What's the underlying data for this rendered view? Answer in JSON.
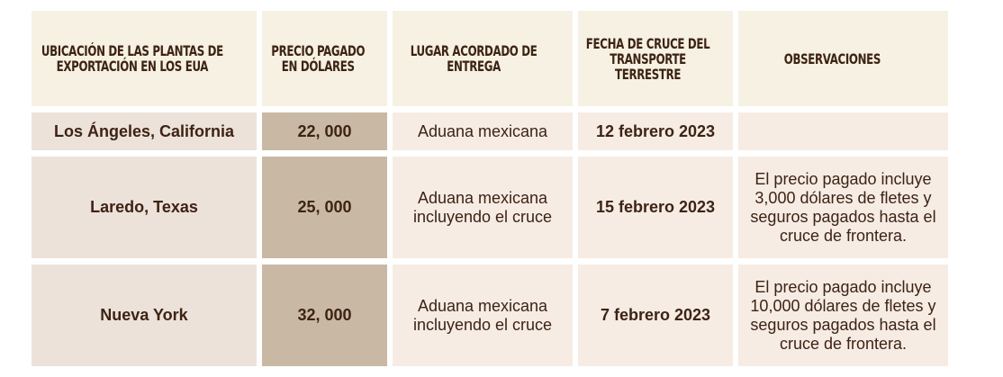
{
  "headers": [
    "UBICACIÓN DE LAS PLANTAS DE EXPORTACIÓN EN LOS EUA",
    "PRECIO PAGADO EN DÓLARES",
    "LUGAR ACORDADO DE ENTREGA",
    "FECHA DE CRUCE DEL TRANSPORTE TERRESTRE",
    "OBSERVACIONES"
  ],
  "rows": [
    {
      "ubicacion": "Los Ángeles, California",
      "precio": "22, 000",
      "lugar": "Aduana mexicana",
      "fecha": "12 febrero 2023",
      "observaciones": ""
    },
    {
      "ubicacion": "Laredo, Texas",
      "precio": "25, 000",
      "lugar": "Aduana mexicana incluyendo el cruce",
      "fecha": "15 febrero 2023",
      "observaciones": "El precio pagado incluye 3,000 dólares de fletes y seguros pagados hasta el cruce de frontera."
    },
    {
      "ubicacion": "Nueva York",
      "precio": "32, 000",
      "lugar": "Aduana mexicana incluyendo el cruce",
      "fecha": "7 febrero 2023",
      "observaciones": "El precio pagado incluye 10,000 dólares de fletes y seguros pagados hasta el cruce de frontera."
    }
  ],
  "colors": {
    "header_bg": "#f6f1e3",
    "location_bg": "#ede2d9",
    "price_bg": "#c9b9a4",
    "cell_bg": "#f6ece4",
    "text": "#3d2314"
  }
}
